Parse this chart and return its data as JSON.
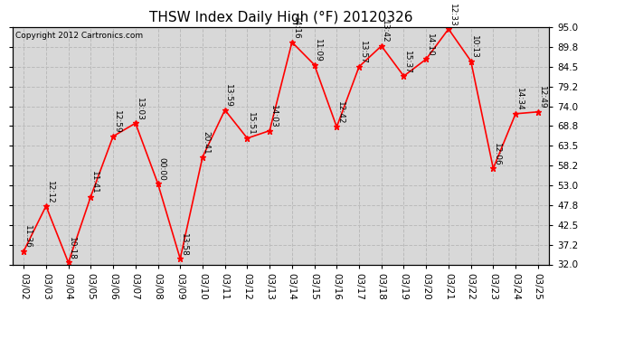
{
  "title": "THSW Index Daily High (°F) 20120326",
  "copyright": "Copyright 2012 Cartronics.com",
  "dates": [
    "03/02",
    "03/03",
    "03/04",
    "03/05",
    "03/06",
    "03/07",
    "03/08",
    "03/09",
    "03/10",
    "03/11",
    "03/12",
    "03/13",
    "03/14",
    "03/15",
    "03/16",
    "03/17",
    "03/18",
    "03/19",
    "03/20",
    "03/21",
    "03/22",
    "03/23",
    "03/24",
    "03/25"
  ],
  "values": [
    35.5,
    47.5,
    32.5,
    50.0,
    66.0,
    69.5,
    53.5,
    33.5,
    60.5,
    73.0,
    65.5,
    67.5,
    91.0,
    85.0,
    68.5,
    84.5,
    90.0,
    82.0,
    86.5,
    94.5,
    86.0,
    57.5,
    72.0,
    72.5
  ],
  "time_labels": [
    "11:36",
    "12:12",
    "10:18",
    "11:41",
    "12:59",
    "13:03",
    "00:00",
    "13:58",
    "20:41",
    "13:59",
    "15:51",
    "14:03",
    "14:16",
    "11:09",
    "12:42",
    "13:57",
    "13:42",
    "15:37",
    "14:10",
    "12:33",
    "10:13",
    "12:06",
    "14:34",
    "12:49"
  ],
  "ylim": [
    32.0,
    95.0
  ],
  "yticks": [
    32.0,
    37.2,
    42.5,
    47.8,
    53.0,
    58.2,
    63.5,
    68.8,
    74.0,
    79.2,
    84.5,
    89.8,
    95.0
  ],
  "line_color": "#ff0000",
  "marker_color": "#ff0000",
  "bg_color": "#ffffff",
  "plot_bg_color": "#d8d8d8",
  "grid_color": "#bbbbbb",
  "title_fontsize": 11,
  "label_fontsize": 6.5,
  "tick_fontsize": 7.5,
  "copyright_fontsize": 6.5
}
